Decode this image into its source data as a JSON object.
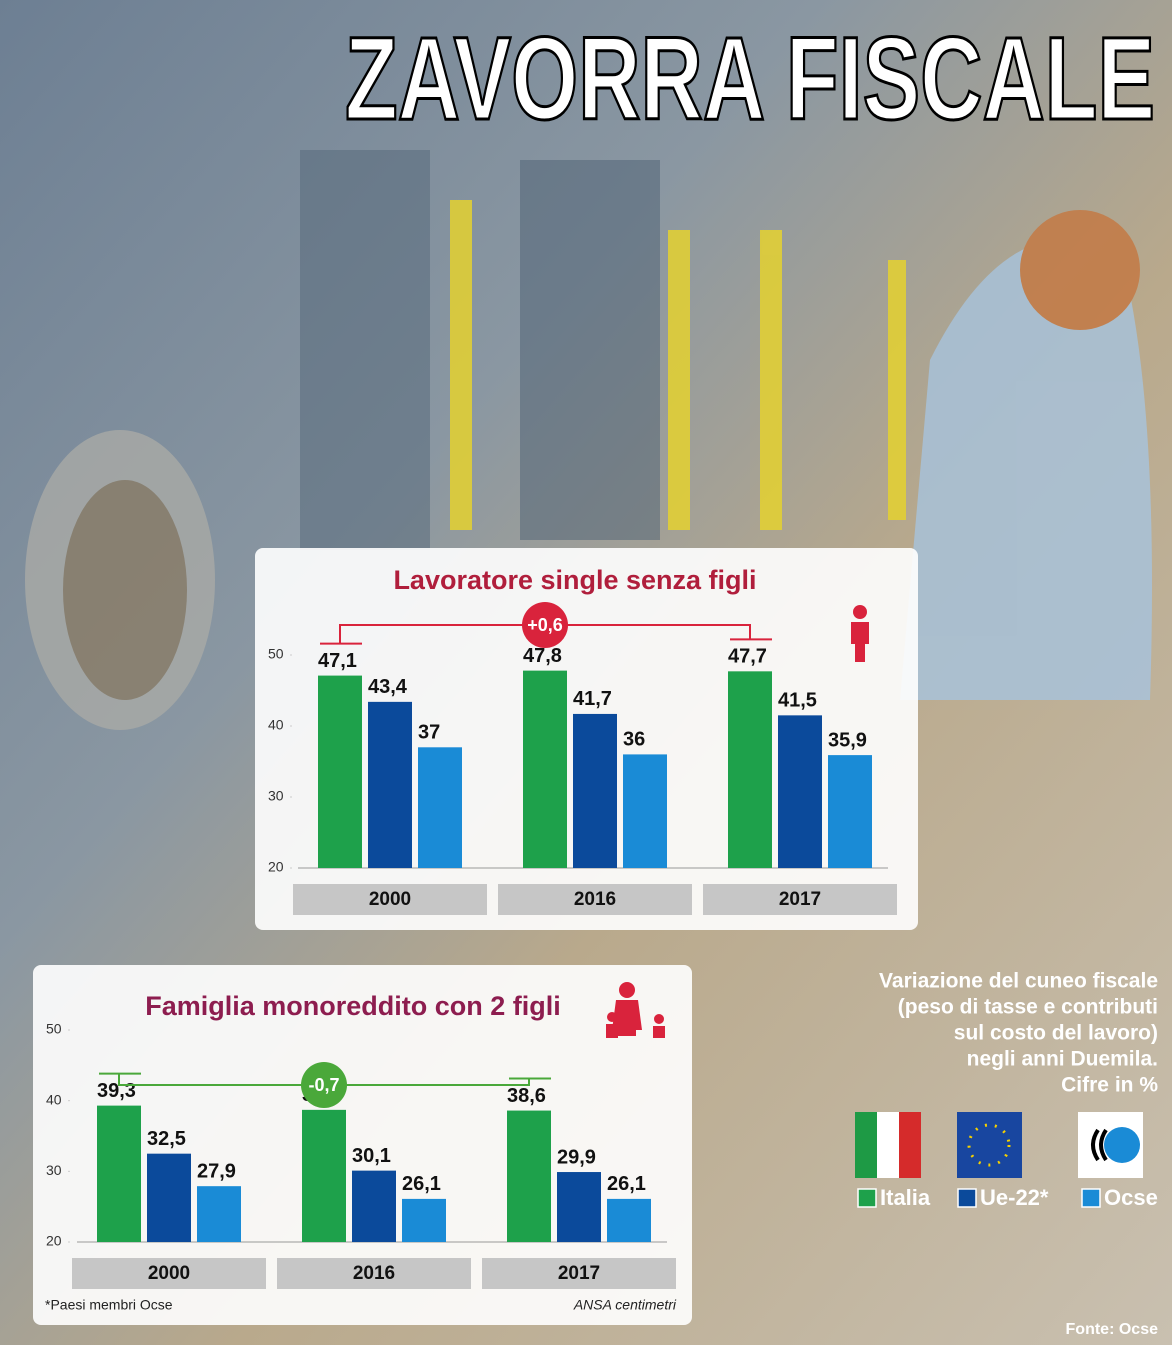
{
  "title": "ZAVORRA FISCALE",
  "description": [
    "Variazione del cuneo fiscale",
    "(peso di tasse e contributi",
    "sul costo del lavoro)",
    "negli anni Duemila.",
    "Cifre in %"
  ],
  "footnote": "*Paesi membri Ocse",
  "credit": "ANSA centimetri",
  "source": "Fonte: Ocse",
  "chart_data": [
    {
      "type": "bar",
      "title": "Lavoratore single senza figli",
      "annotation": "+0,6",
      "categories": [
        "2000",
        "2016",
        "2017"
      ],
      "series": [
        {
          "name": "Italia",
          "color": "#1ea14b",
          "values": [
            47.1,
            47.8,
            47.7
          ],
          "value_labels": [
            "47,1",
            "47,8",
            "47,7"
          ]
        },
        {
          "name": "Ue-22*",
          "color": "#0b4a9b",
          "values": [
            43.4,
            41.7,
            41.5
          ],
          "value_labels": [
            "43,4",
            "41,7",
            "41,5"
          ]
        },
        {
          "name": "Ocse",
          "color": "#1a8bd6",
          "values": [
            37,
            36,
            35.9
          ],
          "value_labels": [
            "37",
            "36",
            "35,9"
          ]
        }
      ],
      "ylim": [
        20,
        50
      ],
      "yticks": [
        20,
        30,
        40,
        50
      ],
      "annotation_color": "#d9233c"
    },
    {
      "type": "bar",
      "title": "Famiglia monoreddito con 2 figli",
      "annotation": "-0,7",
      "categories": [
        "2000",
        "2016",
        "2017"
      ],
      "series": [
        {
          "color": "#1ea14b",
          "values": [
            39.3,
            38.7,
            38.6
          ],
          "value_labels": [
            "39,3",
            "38,7",
            "38,6"
          ]
        },
        {
          "color": "#0b4a9b",
          "values": [
            32.5,
            30.1,
            29.9
          ],
          "value_labels": [
            "32,5",
            "30,1",
            "29,9"
          ]
        },
        {
          "color": "#1a8bd6",
          "values": [
            27.9,
            26.1,
            26.1
          ],
          "value_labels": [
            "27,9",
            "26,1",
            "26,1"
          ]
        }
      ],
      "ylim": [
        20,
        50
      ],
      "yticks": [
        20,
        30,
        40,
        50
      ],
      "annotation_color": "#4aa83a"
    }
  ]
}
